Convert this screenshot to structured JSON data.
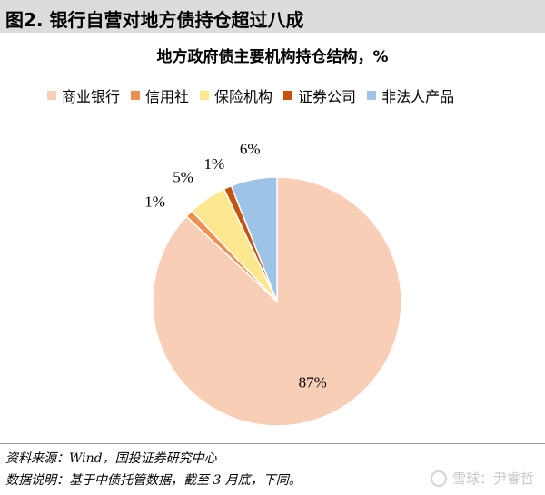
{
  "header": {
    "title": "图2. 银行自营对地方债持仓超过八成"
  },
  "chart_data": {
    "type": "pie",
    "title": "地方政府债主要机构持仓结构，%",
    "categories": [
      "商业银行",
      "信用社",
      "保险机构",
      "证券公司",
      "非法人产品"
    ],
    "values": [
      87,
      1,
      5,
      1,
      6
    ],
    "data_labels": [
      "87%",
      "1%",
      "5%",
      "1%",
      "6%"
    ],
    "colors": [
      "#f8cfb6",
      "#ef9050",
      "#fde890",
      "#c4520f",
      "#9dc3e6"
    ],
    "legend_position": "top"
  },
  "footnotes": {
    "source": "资料来源：Wind，国投证券研究中心",
    "note": "数据说明：基于中债托管数据，截至 3 月底，下同。"
  },
  "watermark": {
    "text": "雪球：尹睿哲"
  }
}
